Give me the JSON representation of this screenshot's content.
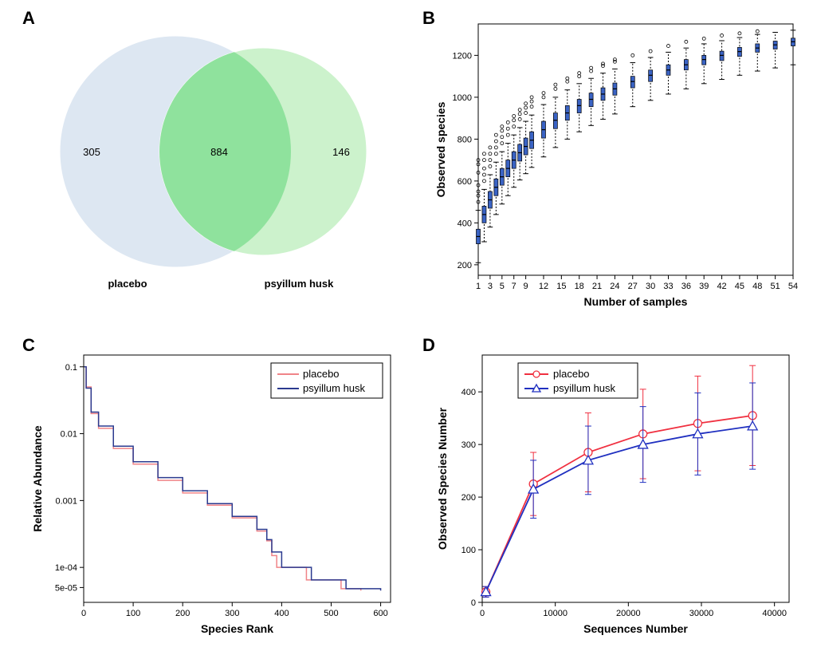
{
  "panelLabels": {
    "A": "A",
    "B": "B",
    "C": "C",
    "D": "D"
  },
  "panelA": {
    "type": "venn",
    "leftLabel": "placebo",
    "rightLabel": "psyillum husk",
    "leftOnly": 305,
    "overlap": 884,
    "rightOnly": 146,
    "colors": {
      "leftFill": "#d9e4f1",
      "rightFill": "#c3f0c3",
      "overlapFill": "#8ce09a",
      "outline": "#ffffff",
      "text": "#000000"
    },
    "font": {
      "valueSize": 13,
      "labelSize": 13,
      "labelWeight": "bold"
    }
  },
  "panelB": {
    "type": "boxplot-accumulation",
    "xTitle": "Number of samples",
    "yTitle": "Observed species",
    "xTicks": [
      1,
      3,
      5,
      7,
      9,
      12,
      15,
      18,
      21,
      24,
      27,
      30,
      33,
      36,
      39,
      42,
      45,
      48,
      51,
      54
    ],
    "yTicks": [
      200,
      400,
      600,
      800,
      1000,
      1200
    ],
    "xlim": [
      1,
      54
    ],
    "ylim": [
      150,
      1350
    ],
    "series": [
      {
        "x": 1,
        "q1": 300,
        "med": 335,
        "q3": 370,
        "lo": 210,
        "hi": 460,
        "out": [
          500,
          530,
          550,
          580,
          640,
          680,
          700
        ]
      },
      {
        "x": 2,
        "q1": 400,
        "med": 440,
        "q3": 480,
        "lo": 310,
        "hi": 560,
        "out": [
          600,
          630,
          660,
          700,
          730
        ]
      },
      {
        "x": 3,
        "q1": 470,
        "med": 510,
        "q3": 550,
        "lo": 380,
        "hi": 630,
        "out": [
          670,
          700,
          730,
          760
        ]
      },
      {
        "x": 4,
        "q1": 530,
        "med": 570,
        "q3": 610,
        "lo": 440,
        "hi": 690,
        "out": [
          730,
          760,
          790,
          820
        ]
      },
      {
        "x": 5,
        "q1": 580,
        "med": 620,
        "q3": 660,
        "lo": 490,
        "hi": 740,
        "out": [
          780,
          810,
          840,
          860
        ]
      },
      {
        "x": 6,
        "q1": 620,
        "med": 660,
        "q3": 700,
        "lo": 530,
        "hi": 780,
        "out": [
          820,
          850,
          880
        ]
      },
      {
        "x": 7,
        "q1": 660,
        "med": 700,
        "q3": 740,
        "lo": 570,
        "hi": 820,
        "out": [
          860,
          890,
          910
        ]
      },
      {
        "x": 8,
        "q1": 695,
        "med": 735,
        "q3": 775,
        "lo": 605,
        "hi": 855,
        "out": [
          895,
          920,
          940
        ]
      },
      {
        "x": 9,
        "q1": 725,
        "med": 765,
        "q3": 805,
        "lo": 635,
        "hi": 885,
        "out": [
          925,
          950,
          970
        ]
      },
      {
        "x": 10,
        "q1": 755,
        "med": 795,
        "q3": 835,
        "lo": 665,
        "hi": 915,
        "out": [
          955,
          980,
          1000
        ]
      },
      {
        "x": 12,
        "q1": 805,
        "med": 845,
        "q3": 885,
        "lo": 715,
        "hi": 965,
        "out": [
          1000,
          1020
        ]
      },
      {
        "x": 14,
        "q1": 850,
        "med": 890,
        "q3": 925,
        "lo": 760,
        "hi": 1000,
        "out": [
          1040,
          1060
        ]
      },
      {
        "x": 16,
        "q1": 890,
        "med": 925,
        "q3": 960,
        "lo": 800,
        "hi": 1035,
        "out": [
          1075,
          1090
        ]
      },
      {
        "x": 18,
        "q1": 925,
        "med": 960,
        "q3": 990,
        "lo": 835,
        "hi": 1065,
        "out": [
          1100,
          1115
        ]
      },
      {
        "x": 20,
        "q1": 955,
        "med": 990,
        "q3": 1020,
        "lo": 865,
        "hi": 1090,
        "out": [
          1125,
          1140
        ]
      },
      {
        "x": 22,
        "q1": 985,
        "med": 1015,
        "q3": 1045,
        "lo": 895,
        "hi": 1115,
        "out": [
          1150,
          1160
        ]
      },
      {
        "x": 24,
        "q1": 1010,
        "med": 1040,
        "q3": 1068,
        "lo": 920,
        "hi": 1135,
        "out": [
          1170,
          1180
        ]
      },
      {
        "x": 27,
        "q1": 1045,
        "med": 1075,
        "q3": 1100,
        "lo": 955,
        "hi": 1165,
        "out": [
          1200
        ]
      },
      {
        "x": 30,
        "q1": 1075,
        "med": 1105,
        "q3": 1130,
        "lo": 985,
        "hi": 1190,
        "out": [
          1220
        ]
      },
      {
        "x": 33,
        "q1": 1105,
        "med": 1130,
        "q3": 1155,
        "lo": 1015,
        "hi": 1215,
        "out": [
          1245
        ]
      },
      {
        "x": 36,
        "q1": 1130,
        "med": 1155,
        "q3": 1180,
        "lo": 1040,
        "hi": 1235,
        "out": [
          1265
        ]
      },
      {
        "x": 39,
        "q1": 1155,
        "med": 1180,
        "q3": 1200,
        "lo": 1065,
        "hi": 1255,
        "out": [
          1280
        ]
      },
      {
        "x": 42,
        "q1": 1175,
        "med": 1200,
        "q3": 1220,
        "lo": 1085,
        "hi": 1270,
        "out": [
          1295
        ]
      },
      {
        "x": 45,
        "q1": 1195,
        "med": 1218,
        "q3": 1238,
        "lo": 1105,
        "hi": 1285,
        "out": [
          1305
        ]
      },
      {
        "x": 48,
        "q1": 1215,
        "med": 1235,
        "q3": 1255,
        "lo": 1125,
        "hi": 1300,
        "out": [
          1315
        ]
      },
      {
        "x": 51,
        "q1": 1230,
        "med": 1250,
        "q3": 1268,
        "lo": 1140,
        "hi": 1310,
        "out": []
      },
      {
        "x": 54,
        "q1": 1245,
        "med": 1265,
        "q3": 1282,
        "lo": 1155,
        "hi": 1320,
        "out": []
      }
    ],
    "colors": {
      "boxFill": "#3a63c4",
      "boxStroke": "#000000",
      "whisker": "#000000",
      "outlier": "#000000",
      "axis": "#000000"
    },
    "boxWidth": 5,
    "font": {
      "tickSize": 11,
      "titleSize": 14
    }
  },
  "panelC": {
    "type": "rank-abundance",
    "xTitle": "Species Rank",
    "yTitle": "Relative Abundance",
    "xTicks": [
      0,
      100,
      200,
      300,
      400,
      500,
      600
    ],
    "yTicksLog": [
      0.0001,
      0.001,
      0.01,
      0.1
    ],
    "yTickLabels": [
      "1e-04",
      "0.001",
      "0.01",
      "0.1"
    ],
    "extraYTick": {
      "value": 5e-05,
      "label": "5e-05"
    },
    "xlim": [
      0,
      620
    ],
    "ylimLog": [
      3e-05,
      0.15
    ],
    "legend": [
      {
        "label": "placebo",
        "color": "#f08488"
      },
      {
        "label": "psyillum husk",
        "color": "#2b3a8f"
      }
    ],
    "curves": {
      "placebo": [
        [
          1,
          0.1
        ],
        [
          5,
          0.05
        ],
        [
          15,
          0.02
        ],
        [
          30,
          0.012
        ],
        [
          60,
          0.006
        ],
        [
          100,
          0.0035
        ],
        [
          150,
          0.002
        ],
        [
          200,
          0.0013
        ],
        [
          250,
          0.00085
        ],
        [
          300,
          0.00055
        ],
        [
          350,
          0.00035
        ],
        [
          370,
          0.00025
        ],
        [
          380,
          0.00015
        ],
        [
          390,
          0.0001
        ],
        [
          450,
          6.5e-05
        ],
        [
          520,
          4.8e-05
        ],
        [
          560,
          4.5e-05
        ]
      ],
      "psyllum": [
        [
          1,
          0.1
        ],
        [
          5,
          0.048
        ],
        [
          15,
          0.021
        ],
        [
          30,
          0.013
        ],
        [
          60,
          0.0065
        ],
        [
          100,
          0.0038
        ],
        [
          150,
          0.0022
        ],
        [
          200,
          0.0014
        ],
        [
          250,
          0.0009
        ],
        [
          300,
          0.00058
        ],
        [
          350,
          0.00037
        ],
        [
          370,
          0.00026
        ],
        [
          380,
          0.00017
        ],
        [
          400,
          0.0001
        ],
        [
          460,
          6.5e-05
        ],
        [
          530,
          4.8e-05
        ],
        [
          600,
          4.5e-05
        ]
      ]
    },
    "lineWidth": 1.5,
    "font": {
      "tickSize": 11,
      "titleSize": 14,
      "legendSize": 13
    }
  },
  "panelD": {
    "type": "rarefaction",
    "xTitle": "Sequences Number",
    "yTitle": "Observed Species Number",
    "xTicks": [
      0,
      10000,
      20000,
      30000,
      40000
    ],
    "yTicks": [
      0,
      100,
      200,
      300,
      400
    ],
    "xlim": [
      0,
      42000
    ],
    "ylim": [
      0,
      470
    ],
    "legend": [
      {
        "label": "placebo",
        "color": "#f03040",
        "marker": "circle"
      },
      {
        "label": "psyillum husk",
        "color": "#2030c0",
        "marker": "triangle"
      }
    ],
    "series": {
      "placebo": [
        {
          "x": 500,
          "y": 20,
          "err": 10
        },
        {
          "x": 7000,
          "y": 225,
          "err": 60
        },
        {
          "x": 14500,
          "y": 285,
          "err": 75
        },
        {
          "x": 22000,
          "y": 320,
          "err": 85
        },
        {
          "x": 29500,
          "y": 340,
          "err": 90
        },
        {
          "x": 37000,
          "y": 355,
          "err": 95
        }
      ],
      "psyllum": [
        {
          "x": 500,
          "y": 20,
          "err": 10
        },
        {
          "x": 7000,
          "y": 215,
          "err": 55
        },
        {
          "x": 14500,
          "y": 270,
          "err": 65
        },
        {
          "x": 22000,
          "y": 300,
          "err": 72
        },
        {
          "x": 29500,
          "y": 320,
          "err": 78
        },
        {
          "x": 37000,
          "y": 335,
          "err": 82
        }
      ]
    },
    "lineWidth": 1.8,
    "markerSize": 5,
    "font": {
      "tickSize": 11,
      "titleSize": 14,
      "legendSize": 13
    }
  }
}
